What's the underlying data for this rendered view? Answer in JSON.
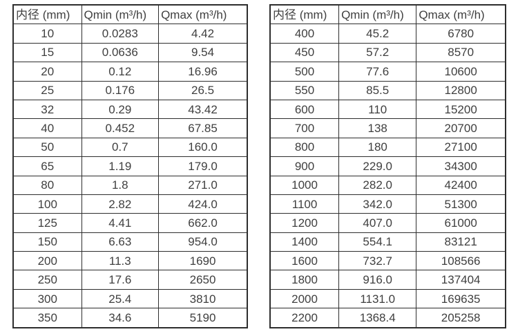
{
  "colors": {
    "background": "#ffffff",
    "border": "#2d2d2d",
    "text": "#3f3f3f"
  },
  "table_left": {
    "headers": [
      "内径 (mm)",
      "Qmin (m³/h)",
      "Qmax (m³/h)"
    ],
    "rows": [
      [
        "10",
        "0.0283",
        "4.42"
      ],
      [
        "15",
        "0.0636",
        "9.54"
      ],
      [
        "20",
        "0.12",
        "16.96"
      ],
      [
        "25",
        "0.176",
        "26.5"
      ],
      [
        "32",
        "0.29",
        "43.42"
      ],
      [
        "40",
        "0.452",
        "67.85"
      ],
      [
        "50",
        "0.7",
        "160.0"
      ],
      [
        "65",
        "1.19",
        "179.0"
      ],
      [
        "80",
        "1.8",
        "271.0"
      ],
      [
        "100",
        "2.82",
        "424.0"
      ],
      [
        "125",
        "4.41",
        "662.0"
      ],
      [
        "150",
        "6.63",
        "954.0"
      ],
      [
        "200",
        "11.3",
        "1690"
      ],
      [
        "250",
        "17.6",
        "2650"
      ],
      [
        "300",
        "25.4",
        "3810"
      ],
      [
        "350",
        "34.6",
        "5190"
      ]
    ]
  },
  "table_right": {
    "headers": [
      "内径 (mm)",
      "Qmin (m³/h)",
      "Qmax (m³/h)"
    ],
    "rows": [
      [
        "400",
        "45.2",
        "6780"
      ],
      [
        "450",
        "57.2",
        "8570"
      ],
      [
        "500",
        "77.6",
        "10600"
      ],
      [
        "550",
        "85.5",
        "12800"
      ],
      [
        "600",
        "110",
        "15200"
      ],
      [
        "700",
        "138",
        "20700"
      ],
      [
        "800",
        "180",
        "27100"
      ],
      [
        "900",
        "229.0",
        "34300"
      ],
      [
        "1000",
        "282.0",
        "42400"
      ],
      [
        "1100",
        "342.0",
        "51300"
      ],
      [
        "1200",
        "407.0",
        "61000"
      ],
      [
        "1400",
        "554.1",
        "83121"
      ],
      [
        "1600",
        "732.7",
        "108566"
      ],
      [
        "1800",
        "916.0",
        "137404"
      ],
      [
        "2000",
        "1131.0",
        "169635"
      ],
      [
        "2200",
        "1368.4",
        "205258"
      ]
    ]
  }
}
